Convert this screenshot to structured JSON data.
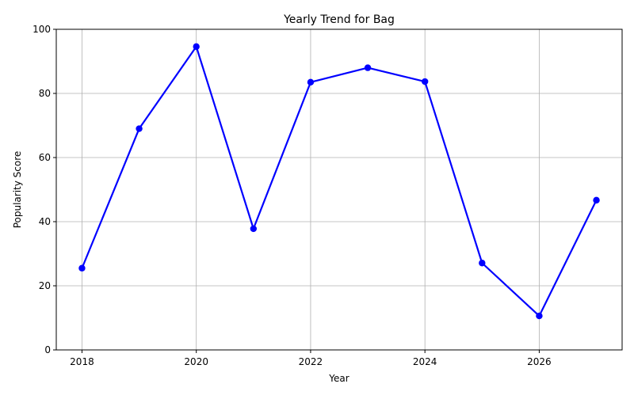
{
  "chart_data": {
    "type": "line",
    "title": "Yearly Trend for Bag",
    "xlabel": "Year",
    "ylabel": "Popularity Score",
    "x": [
      2018,
      2019,
      2020,
      2021,
      2022,
      2023,
      2024,
      2025,
      2026,
      2027
    ],
    "series": [
      {
        "values": [
          25.5,
          69.0,
          94.6,
          37.8,
          83.5,
          88.0,
          83.7,
          27.1,
          10.6,
          46.7
        ]
      }
    ],
    "xlim": [
      2017.55,
      2027.45
    ],
    "ylim": [
      0,
      100
    ],
    "xticks": [
      2018,
      2020,
      2022,
      2024,
      2026
    ],
    "xtick_labels": [
      "2018",
      "2020",
      "2022",
      "2024",
      "2026"
    ],
    "yticks": [
      0,
      20,
      40,
      60,
      80,
      100
    ],
    "ytick_labels": [
      "0",
      "20",
      "40",
      "60",
      "80",
      "100"
    ],
    "grid": true,
    "legend": "none",
    "line_color": "#0000ff",
    "grid_color": "#b0b0b0"
  }
}
